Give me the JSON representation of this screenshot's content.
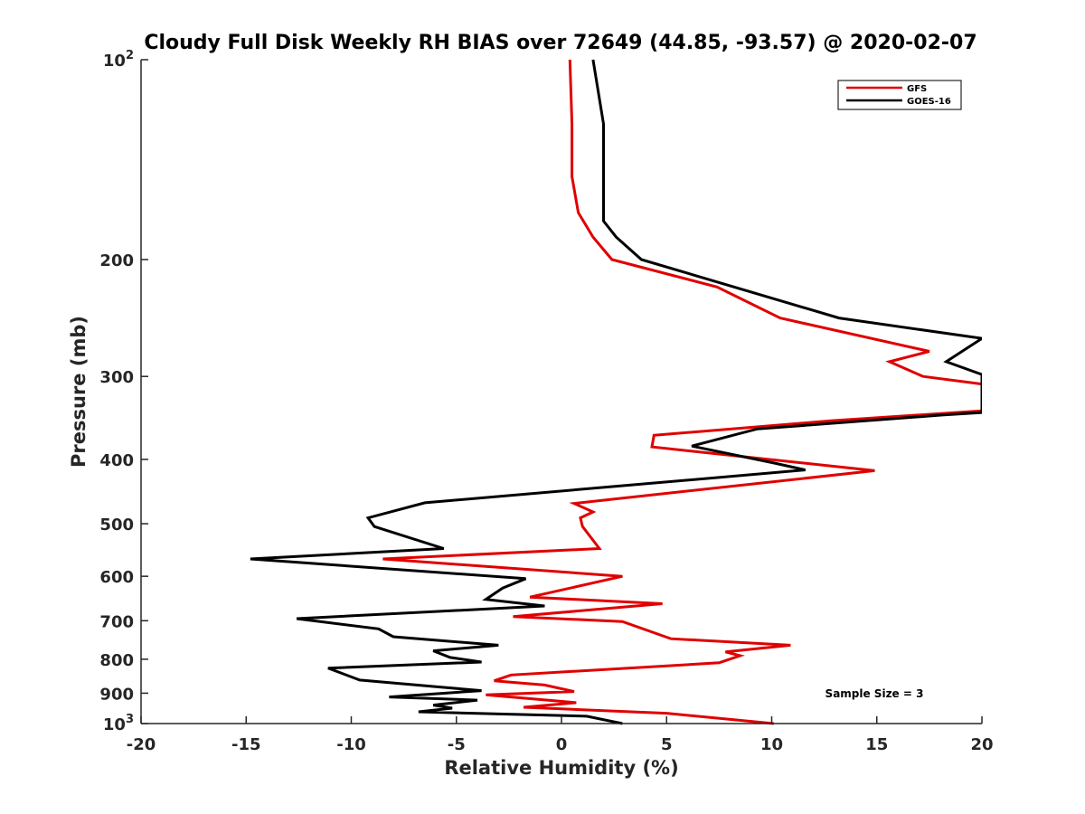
{
  "chart_data": {
    "type": "line",
    "title": "Cloudy Full Disk Weekly RH BIAS over 72649 (44.85, -93.57) @ 2020-02-07",
    "xlabel": "Relative Humidity (%)",
    "ylabel": "Pressure (mb)",
    "xlim": [
      -20,
      20
    ],
    "ylim": [
      100,
      1000
    ],
    "y_scale": "log",
    "y_reversed": true,
    "grid": false,
    "legend_position": "top-right",
    "x_ticks": [
      "-20",
      "-15",
      "-10",
      "-5",
      "0",
      "5",
      "10",
      "15",
      "20"
    ],
    "y_ticks": [
      {
        "value": 100,
        "base": "10",
        "exp": "2"
      },
      {
        "value": 200,
        "label": "200"
      },
      {
        "value": 300,
        "label": "300"
      },
      {
        "value": 400,
        "label": "400"
      },
      {
        "value": 500,
        "label": "500"
      },
      {
        "value": 600,
        "label": "600"
      },
      {
        "value": 700,
        "label": "700"
      },
      {
        "value": 800,
        "label": "800"
      },
      {
        "value": 900,
        "label": "900"
      },
      {
        "value": 1000,
        "base": "10",
        "exp": "3"
      }
    ],
    "annotation": "Sample Size = 3",
    "series": [
      {
        "name": "GFS",
        "color": "#e00000",
        "points": [
          [
            0.4,
            100
          ],
          [
            0.5,
            125
          ],
          [
            0.5,
            150
          ],
          [
            0.8,
            170
          ],
          [
            1.5,
            185
          ],
          [
            2.4,
            200
          ],
          [
            7.4,
            220
          ],
          [
            10.4,
            245
          ],
          [
            17.5,
            275
          ],
          [
            15.6,
            285
          ],
          [
            17.2,
            300
          ],
          [
            20.0,
            308
          ],
          [
            20.0,
            338
          ],
          [
            12.8,
            350
          ],
          [
            4.4,
            368
          ],
          [
            4.3,
            383
          ],
          [
            14.9,
            416
          ],
          [
            0.6,
            466
          ],
          [
            1.5,
            480
          ],
          [
            0.9,
            490
          ],
          [
            1.0,
            505
          ],
          [
            1.8,
            545
          ],
          [
            -8.5,
            565
          ],
          [
            2.9,
            600
          ],
          [
            -1.5,
            645
          ],
          [
            4.8,
            660
          ],
          [
            -2.3,
            690
          ],
          [
            2.9,
            702
          ],
          [
            5.2,
            745
          ],
          [
            10.9,
            762
          ],
          [
            7.8,
            780
          ],
          [
            8.5,
            790
          ],
          [
            7.5,
            810
          ],
          [
            -2.4,
            845
          ],
          [
            -3.2,
            862
          ],
          [
            -0.8,
            875
          ],
          [
            0.6,
            895
          ],
          [
            -3.6,
            905
          ],
          [
            0.7,
            930
          ],
          [
            -1.8,
            945
          ],
          [
            5.0,
            965
          ],
          [
            10.1,
            1000
          ]
        ]
      },
      {
        "name": "GOES-16",
        "color": "#000000",
        "points": [
          [
            1.5,
            100
          ],
          [
            2.0,
            125
          ],
          [
            2.0,
            150
          ],
          [
            2.0,
            175
          ],
          [
            2.6,
            185
          ],
          [
            3.8,
            200
          ],
          [
            13.2,
            245
          ],
          [
            20.0,
            263
          ],
          [
            18.3,
            285
          ],
          [
            20.0,
            298
          ],
          [
            20.0,
            340
          ],
          [
            18.1,
            343
          ],
          [
            9.3,
            360
          ],
          [
            6.2,
            382
          ],
          [
            10.1,
            405
          ],
          [
            11.6,
            415
          ],
          [
            -6.5,
            465
          ],
          [
            -9.2,
            490
          ],
          [
            -8.9,
            505
          ],
          [
            -5.6,
            545
          ],
          [
            -14.8,
            565
          ],
          [
            -1.7,
            605
          ],
          [
            -2.8,
            625
          ],
          [
            -3.6,
            650
          ],
          [
            -0.8,
            665
          ],
          [
            -12.6,
            695
          ],
          [
            -8.7,
            720
          ],
          [
            -8.0,
            740
          ],
          [
            -3.0,
            762
          ],
          [
            -6.1,
            777
          ],
          [
            -5.3,
            795
          ],
          [
            -3.8,
            808
          ],
          [
            -11.1,
            825
          ],
          [
            -9.6,
            860
          ],
          [
            -5.6,
            882
          ],
          [
            -3.8,
            892
          ],
          [
            -8.2,
            912
          ],
          [
            -4.0,
            922
          ],
          [
            -6.1,
            938
          ],
          [
            -5.2,
            948
          ],
          [
            -6.8,
            960
          ],
          [
            1.2,
            975
          ],
          [
            2.9,
            1000
          ]
        ]
      }
    ]
  }
}
